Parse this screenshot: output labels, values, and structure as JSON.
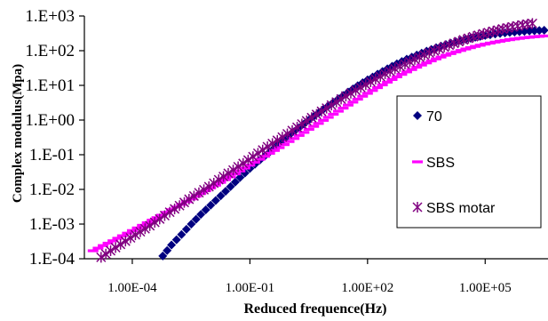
{
  "chart_data": {
    "type": "scatter",
    "title": "",
    "xlabel": "Reduced frequence(Hz)",
    "ylabel": "Complex modulus(Mpa)",
    "x_scale": "log",
    "y_scale": "log",
    "xlim": [
      6e-06,
      4000000
    ],
    "ylim": [
      0.0001,
      1000
    ],
    "x_ticks": [
      {
        "value": 0.0001,
        "label": "1.00E-04"
      },
      {
        "value": 0.1,
        "label": "1.00E-01"
      },
      {
        "value": 100,
        "label": "1.00E+02"
      },
      {
        "value": 100000,
        "label": "1.00E+05"
      }
    ],
    "y_ticks": [
      {
        "value": 0.0001,
        "label": "1.E-04"
      },
      {
        "value": 0.001,
        "label": "1.E-03"
      },
      {
        "value": 0.01,
        "label": "1.E-02"
      },
      {
        "value": 0.1,
        "label": "1.E-01"
      },
      {
        "value": 1,
        "label": "1.E+00"
      },
      {
        "value": 10,
        "label": "1.E+01"
      },
      {
        "value": 100,
        "label": "1.E+02"
      },
      {
        "value": 1000,
        "label": "1.E+03"
      }
    ],
    "grid": false,
    "legend_position": "right",
    "series": [
      {
        "name": "70",
        "marker": "diamond",
        "color": "#000080",
        "x": [
          0.0006,
          0.001,
          0.0018,
          0.0032,
          0.0056,
          0.01,
          0.018,
          0.032,
          0.056,
          0.1,
          0.18,
          0.32,
          0.56,
          1,
          1.8,
          3.2,
          5.6,
          10,
          18,
          32,
          56,
          100,
          180,
          320,
          560,
          1000,
          1800,
          3200,
          5600,
          10000,
          18000,
          32000,
          56000,
          100000,
          180000,
          320000,
          560000,
          1000000,
          1800000,
          3200000
        ],
        "y": [
          0.00012,
          0.00025,
          0.0005,
          0.001,
          0.0019,
          0.0035,
          0.0065,
          0.012,
          0.022,
          0.04,
          0.07,
          0.12,
          0.21,
          0.36,
          0.6,
          1.0,
          1.6,
          2.6,
          4.1,
          6.4,
          9.8,
          14.5,
          21,
          30,
          42,
          57,
          75,
          97,
          122,
          150,
          180,
          212,
          245,
          275,
          302,
          325,
          345,
          362,
          376,
          388
        ]
      },
      {
        "name": "SBS",
        "marker": "dash",
        "color": "#ff00ff",
        "x": [
          1e-05,
          1.8e-05,
          3.2e-05,
          5.6e-05,
          0.0001,
          0.00018,
          0.00032,
          0.00056,
          0.001,
          0.0018,
          0.0032,
          0.0056,
          0.01,
          0.018,
          0.032,
          0.056,
          0.1,
          0.18,
          0.32,
          0.56,
          1,
          1.8,
          3.2,
          5.6,
          10,
          18,
          32,
          56,
          100,
          180,
          320,
          560,
          1000,
          1800,
          3200,
          5600,
          10000,
          18000,
          32000,
          56000,
          100000,
          180000,
          320000,
          560000,
          1000000,
          1800000,
          3200000
        ],
        "y": [
          0.00017,
          0.00024,
          0.00033,
          0.00046,
          0.00065,
          0.00092,
          0.0013,
          0.0018,
          0.0026,
          0.0037,
          0.0053,
          0.0076,
          0.011,
          0.016,
          0.023,
          0.034,
          0.05,
          0.074,
          0.11,
          0.16,
          0.24,
          0.36,
          0.54,
          0.8,
          1.2,
          1.8,
          2.7,
          4.0,
          5.9,
          8.6,
          12.4,
          17.6,
          24.5,
          33.4,
          44.5,
          58,
          74,
          92,
          112,
          133,
          155,
          177,
          198,
          218,
          236,
          252,
          266
        ]
      },
      {
        "name": "SBS motar",
        "marker": "asterisk",
        "color": "#800080",
        "x": [
          1.6e-05,
          2.8e-05,
          5e-05,
          9e-05,
          0.00016,
          0.00028,
          0.0005,
          0.0009,
          0.0016,
          0.0028,
          0.005,
          0.009,
          0.016,
          0.028,
          0.05,
          0.09,
          0.16,
          0.28,
          0.5,
          0.9,
          1.6,
          2.8,
          5,
          9,
          16,
          28,
          50,
          90,
          160,
          280,
          500,
          900,
          1600,
          2800,
          5000,
          9000,
          16000,
          28000,
          50000,
          90000,
          160000,
          280000,
          500000,
          900000,
          1600000
        ],
        "y": [
          0.00011,
          0.00017,
          0.00026,
          0.0004,
          0.0006,
          0.0009,
          0.0014,
          0.0022,
          0.0034,
          0.0052,
          0.008,
          0.012,
          0.019,
          0.029,
          0.045,
          0.07,
          0.11,
          0.17,
          0.26,
          0.4,
          0.62,
          0.95,
          1.45,
          2.2,
          3.3,
          4.9,
          7.2,
          10.5,
          15.2,
          21.5,
          30,
          41,
          56,
          75,
          99,
          128,
          163,
          205,
          253,
          306,
          363,
          423,
          485,
          548,
          610
        ]
      }
    ]
  }
}
